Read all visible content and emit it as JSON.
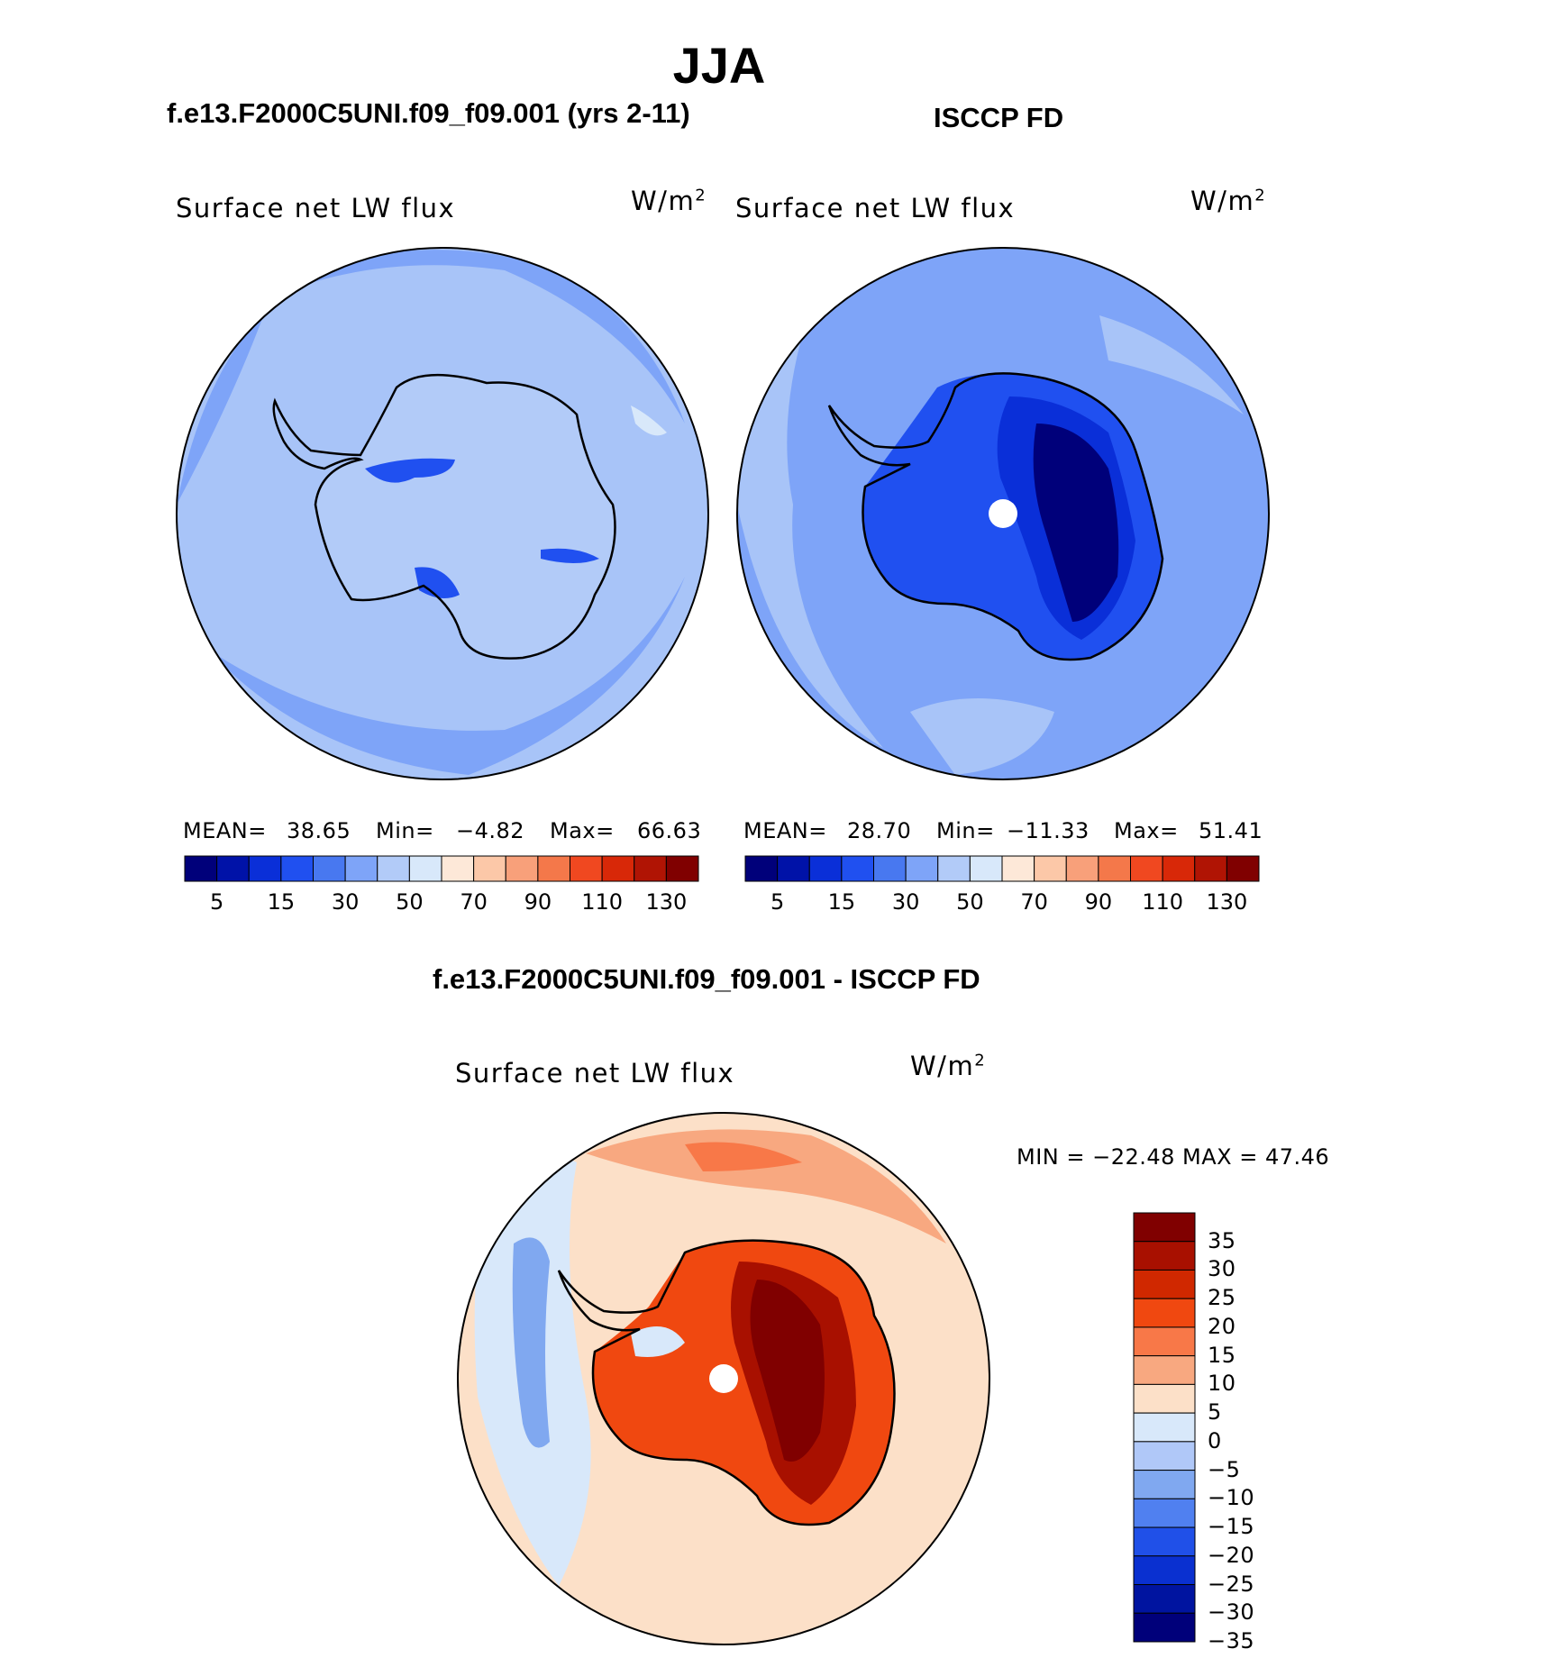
{
  "title": "JJA",
  "panels": [
    {
      "subtitle": "f.e13.F2000C5UNI.f09_f09.001 (yrs 2-11)",
      "variable": "Surface net LW flux",
      "units": "W/m",
      "units_sup": "2",
      "stats": {
        "mean_label": "MEAN=",
        "mean": "38.65",
        "min_label": "Min=",
        "min": "−4.82",
        "max_label": "Max=",
        "max": "66.63"
      }
    },
    {
      "subtitle": "ISCCP FD",
      "variable": "Surface net LW flux",
      "units": "W/m",
      "units_sup": "2",
      "stats": {
        "mean_label": "MEAN=",
        "mean": "28.70",
        "min_label": "Min=",
        "min": "−11.33",
        "max_label": "Max=",
        "max": "51.41"
      }
    },
    {
      "subtitle": "f.e13.F2000C5UNI.f09_f09.001 - ISCCP FD",
      "variable": "Surface net LW flux",
      "units": "W/m",
      "units_sup": "2",
      "stats_text": "MIN = −22.48 MAX =  47.46"
    }
  ],
  "chart_data": [
    {
      "type": "heatmap",
      "projection": "south-polar-stereographic",
      "title": "Surface net LW flux",
      "units": "W/m2",
      "mean": 38.65,
      "min": -4.82,
      "max": 66.63,
      "colorbar": {
        "levels": [
          0,
          5,
          10,
          15,
          20,
          30,
          40,
          50,
          60,
          70,
          80,
          90,
          100,
          110,
          120,
          130,
          140
        ],
        "tick_labels": [
          "5",
          "15",
          "30",
          "50",
          "70",
          "90",
          "110",
          "130"
        ],
        "colors": [
          "#00007a",
          "#0012a8",
          "#0a2fd8",
          "#2050f0",
          "#4878f0",
          "#7ea4f8",
          "#b2cbf8",
          "#d8e8fa",
          "#fde8d8",
          "#fcc8a8",
          "#f8a07a",
          "#f4784a",
          "#f04820",
          "#d82808",
          "#b01404",
          "#800000"
        ]
      },
      "field_summary": {
        "ocean": 38,
        "continent_interior": 44,
        "coast_lows": 18
      }
    },
    {
      "type": "heatmap",
      "projection": "south-polar-stereographic",
      "title": "Surface net LW flux",
      "units": "W/m2",
      "mean": 28.7,
      "min": -11.33,
      "max": 51.41,
      "colorbar": {
        "levels": [
          0,
          5,
          10,
          15,
          20,
          30,
          40,
          50,
          60,
          70,
          80,
          90,
          100,
          110,
          120,
          130,
          140
        ],
        "tick_labels": [
          "5",
          "15",
          "30",
          "50",
          "70",
          "90",
          "110",
          "130"
        ]
      },
      "field_summary": {
        "ocean": 38,
        "continent_interior": 4,
        "coast": 22
      }
    },
    {
      "type": "heatmap",
      "projection": "south-polar-stereographic",
      "title": "Surface net LW flux",
      "units": "W/m2",
      "min": -22.48,
      "max": 47.46,
      "colorbar": {
        "orientation": "vertical",
        "tick_labels": [
          "35",
          "30",
          "25",
          "20",
          "15",
          "10",
          "5",
          "0",
          "−5",
          "−10",
          "−15",
          "−20",
          "−25",
          "−30",
          "−35"
        ],
        "colors": [
          "#800000",
          "#a81000",
          "#d02800",
          "#f04810",
          "#f87848",
          "#f8a880",
          "#fce0c8",
          "#d8e8fa",
          "#b0c8f8",
          "#80a8f0",
          "#5080f0",
          "#2050e8",
          "#0a30d0",
          "#0014a0",
          "#00007a"
        ]
      },
      "field_summary": {
        "ocean": 5,
        "west_ocean": -8,
        "continent_interior": 38
      }
    }
  ]
}
